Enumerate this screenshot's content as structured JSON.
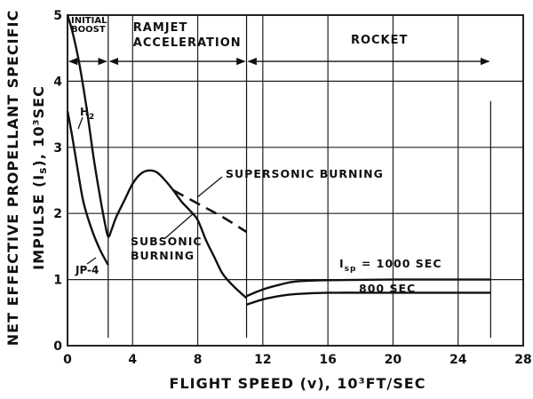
{
  "chart_data": {
    "type": "line",
    "xlabel": "FLIGHT SPEED (v), 10³FT/SEC",
    "ylabel_line1": "NET EFFECTIVE PROPELLANT SPECIFIC",
    "ylabel_line2": "IMPULSE (I",
    "ylabel_line2_sub": "s",
    "ylabel_line2_end": "), 10³SEC",
    "xlim": [
      0,
      28
    ],
    "ylim": [
      0,
      5
    ],
    "x_ticks": [
      "0",
      "4",
      "8",
      "12",
      "16",
      "20",
      "24",
      "28"
    ],
    "y_ticks": [
      "0",
      "1",
      "2",
      "3",
      "4",
      "5"
    ],
    "grid": true,
    "phases": [
      {
        "label_lines": [
          "INITIAL",
          "BOOST"
        ],
        "x_start": 0,
        "x_end": 2.5
      },
      {
        "label_lines": [
          "RAMJET",
          "ACCELERATION"
        ],
        "x_start": 2.5,
        "x_end": 11
      },
      {
        "label_lines": [
          "ROCKET"
        ],
        "x_start": 11,
        "x_end": 26
      }
    ],
    "series": [
      {
        "name": "H",
        "name_sub": "2",
        "style": "solid",
        "points": [
          [
            0,
            5.0
          ],
          [
            0.3,
            4.75
          ],
          [
            0.7,
            4.3
          ],
          [
            1.2,
            3.55
          ],
          [
            1.6,
            2.85
          ],
          [
            2.0,
            2.25
          ],
          [
            2.3,
            1.85
          ],
          [
            2.5,
            1.65
          ],
          [
            2.7,
            1.75
          ],
          [
            3.0,
            1.95
          ],
          [
            3.5,
            2.2
          ],
          [
            4.0,
            2.45
          ],
          [
            4.5,
            2.6
          ],
          [
            5.0,
            2.65
          ],
          [
            5.5,
            2.62
          ],
          [
            6.0,
            2.5
          ],
          [
            6.5,
            2.35
          ],
          [
            7.0,
            2.18
          ],
          [
            7.5,
            2.05
          ],
          [
            8.0,
            1.9
          ],
          [
            8.5,
            1.6
          ],
          [
            9.0,
            1.35
          ],
          [
            9.5,
            1.1
          ],
          [
            10.0,
            0.95
          ],
          [
            10.5,
            0.83
          ],
          [
            11.0,
            0.72
          ]
        ]
      },
      {
        "name": "JP-4",
        "style": "solid",
        "points": [
          [
            0,
            3.55
          ],
          [
            0.3,
            3.15
          ],
          [
            0.7,
            2.55
          ],
          [
            1.0,
            2.15
          ],
          [
            1.5,
            1.75
          ],
          [
            2.0,
            1.45
          ],
          [
            2.5,
            1.22
          ]
        ]
      },
      {
        "name": "SUPERSONIC BURNING",
        "style": "dashed",
        "points": [
          [
            6.5,
            2.35
          ],
          [
            8.0,
            2.15
          ],
          [
            9.5,
            1.95
          ],
          [
            11.0,
            1.72
          ]
        ]
      },
      {
        "name": "800 SEC",
        "style": "solid",
        "points": [
          [
            11,
            0.62
          ],
          [
            12,
            0.7
          ],
          [
            13,
            0.75
          ],
          [
            14,
            0.78
          ],
          [
            16,
            0.8
          ],
          [
            20,
            0.8
          ],
          [
            26,
            0.8
          ]
        ]
      },
      {
        "name": "I",
        "name_sub": "sp",
        "name_end": " = 1000 SEC",
        "style": "solid",
        "points": [
          [
            11,
            0.75
          ],
          [
            12,
            0.85
          ],
          [
            13,
            0.92
          ],
          [
            14,
            0.97
          ],
          [
            16,
            0.99
          ],
          [
            20,
            1.0
          ],
          [
            26,
            1.0
          ]
        ]
      }
    ],
    "annotations": {
      "subsonic_line1": "SUBSONIC",
      "subsonic_line2": "BURNING"
    }
  }
}
